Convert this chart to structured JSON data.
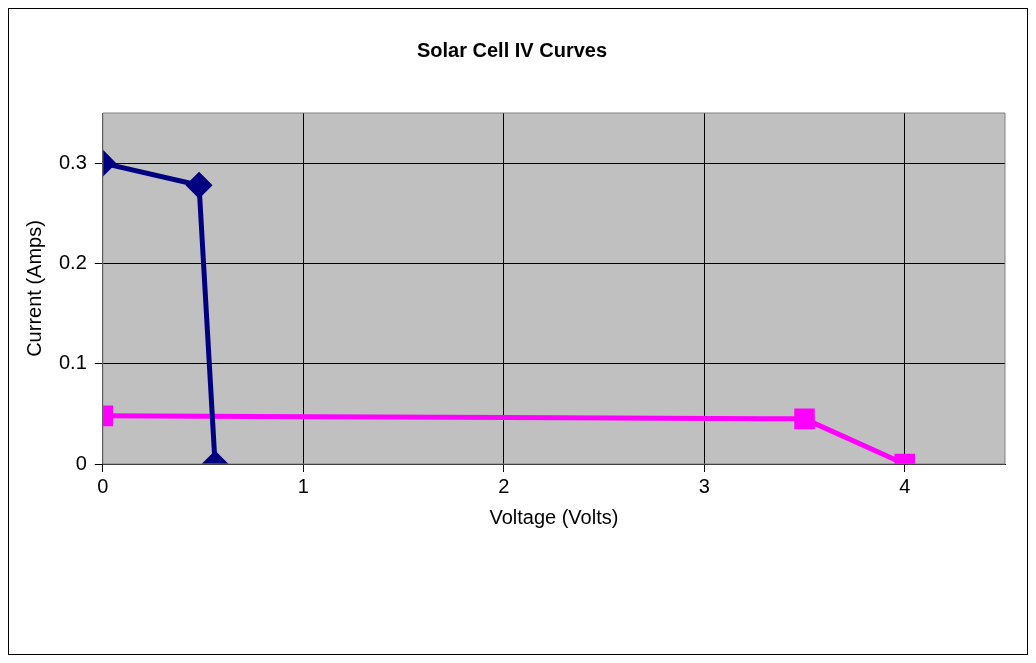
{
  "chart_data": {
    "type": "line",
    "title": "Solar Cell IV Curves",
    "xlabel": "Voltage (Volts)",
    "ylabel": "Current (Amps)",
    "xlim": [
      0,
      4.5
    ],
    "xticks": [
      0,
      1,
      2,
      3,
      4
    ],
    "ylim": [
      0,
      0.35
    ],
    "yticks": [
      0,
      0.1,
      0.2,
      0.3
    ],
    "grid": true,
    "line_style": "solid",
    "series": [
      {
        "color": "#000080",
        "marker": "diamond",
        "x": [
          0,
          0.48,
          0.56
        ],
        "values": [
          0.3,
          0.278,
          0
        ]
      },
      {
        "color": "#ff00ff",
        "marker": "square",
        "x": [
          0,
          3.5,
          4
        ],
        "values": [
          0.048,
          0.045,
          0
        ]
      }
    ]
  }
}
